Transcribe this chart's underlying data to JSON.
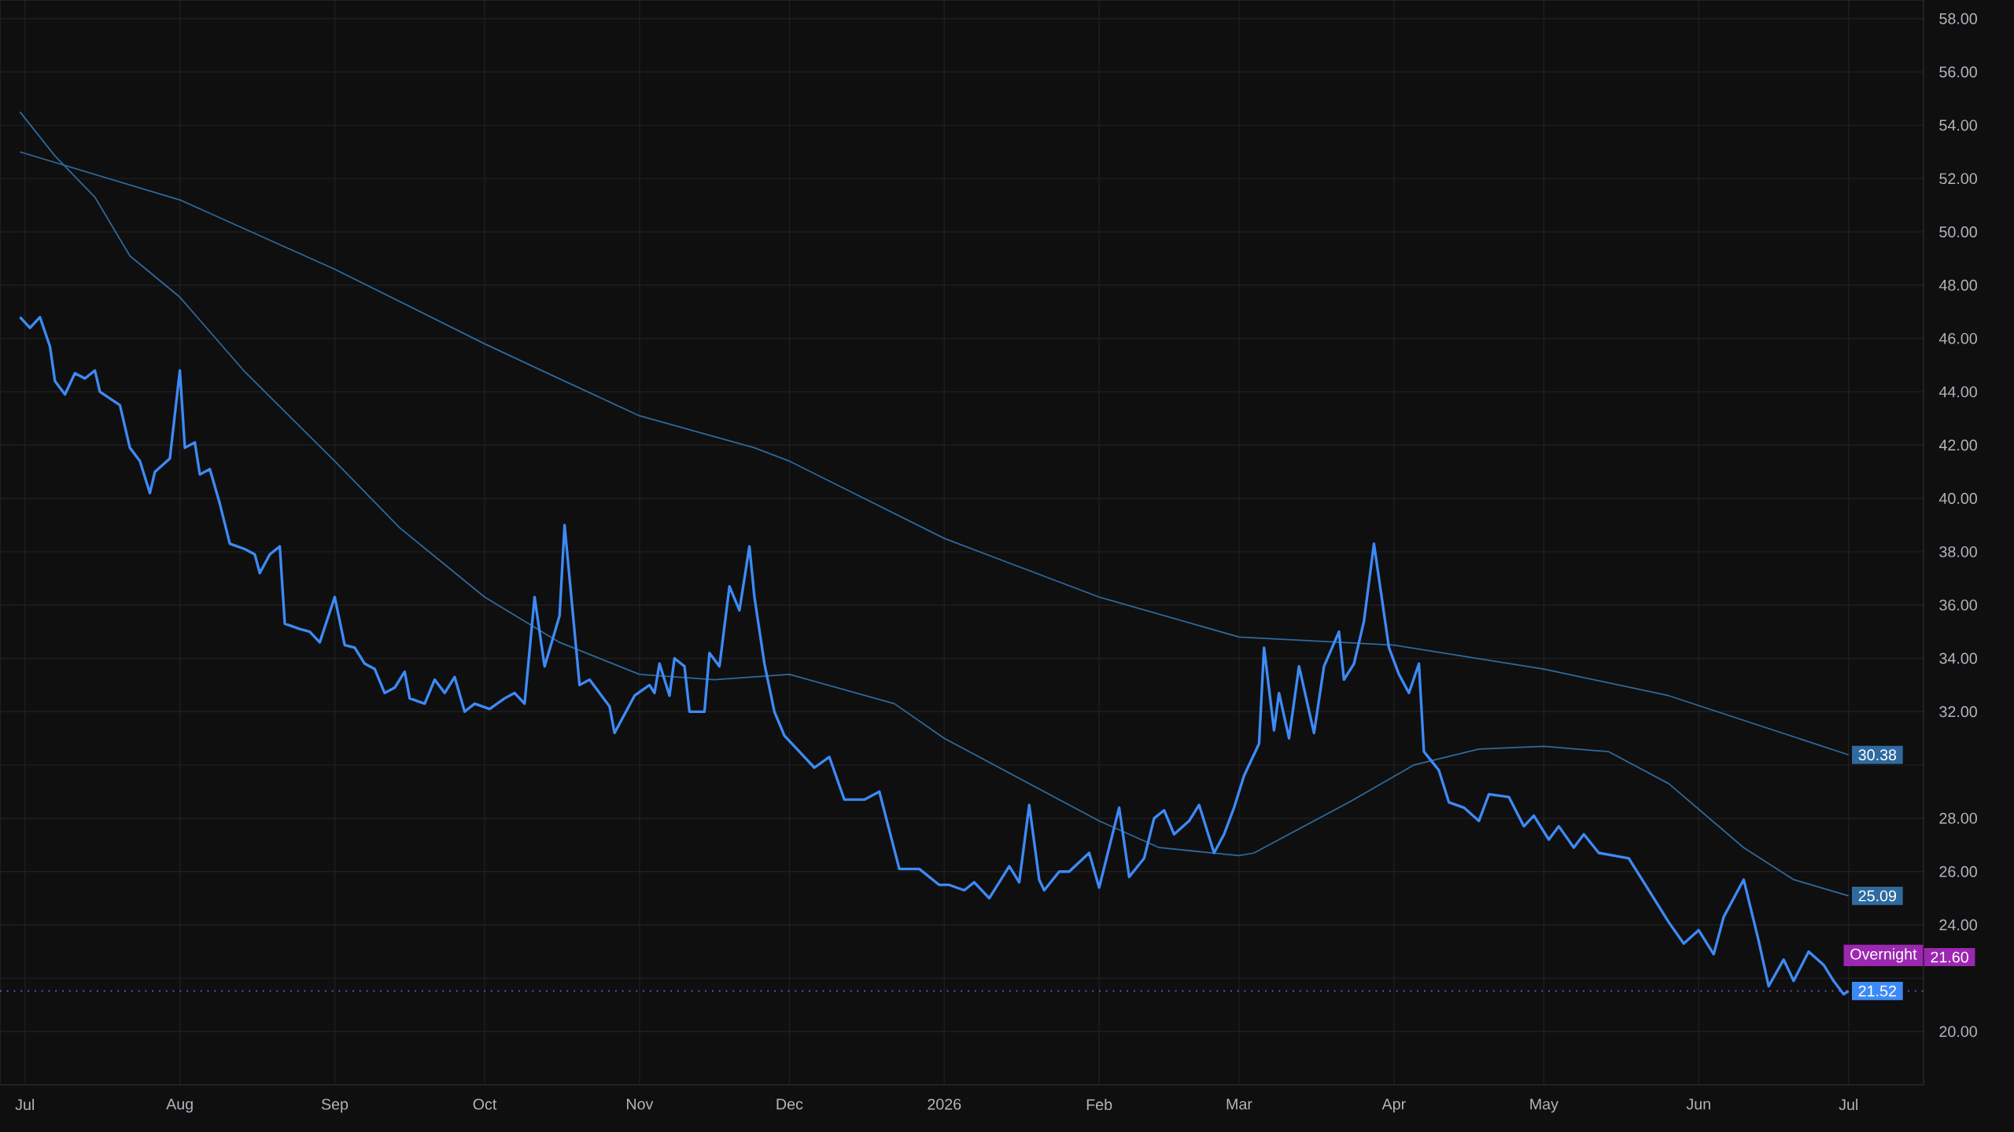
{
  "chart_data": {
    "type": "line",
    "xlim": [
      "2025-06-26",
      "2026-07-16"
    ],
    "ylim": [
      18.0,
      58.7
    ],
    "xticks": [
      {
        "value": "2025-07-01",
        "label": "Jul"
      },
      {
        "value": "2025-08-01",
        "label": "Aug"
      },
      {
        "value": "2025-09-01",
        "label": "Sep"
      },
      {
        "value": "2025-10-01",
        "label": "Oct"
      },
      {
        "value": "2025-11-01",
        "label": "Nov"
      },
      {
        "value": "2025-12-01",
        "label": "Dec"
      },
      {
        "value": "2026-01-01",
        "label": "2026"
      },
      {
        "value": "2026-02-01",
        "label": "Feb"
      },
      {
        "value": "2026-03-01",
        "label": "Mar"
      },
      {
        "value": "2026-04-01",
        "label": "Apr"
      },
      {
        "value": "2026-05-01",
        "label": "May"
      },
      {
        "value": "2026-06-01",
        "label": "Jun"
      },
      {
        "value": "2026-07-01",
        "label": "Jul"
      }
    ],
    "yticks": [
      {
        "value": 20,
        "label": "20.00"
      },
      {
        "value": 22,
        "label": null
      },
      {
        "value": 24,
        "label": "24.00"
      },
      {
        "value": 26,
        "label": "26.00"
      },
      {
        "value": 28,
        "label": "28.00"
      },
      {
        "value": 30,
        "label": null
      },
      {
        "value": 32,
        "label": "32.00"
      },
      {
        "value": 34,
        "label": "34.00"
      },
      {
        "value": 36,
        "label": "36.00"
      },
      {
        "value": 38,
        "label": "38.00"
      },
      {
        "value": 40,
        "label": "40.00"
      },
      {
        "value": 42,
        "label": "42.00"
      },
      {
        "value": 44,
        "label": "44.00"
      },
      {
        "value": 46,
        "label": "46.00"
      },
      {
        "value": 48,
        "label": "48.00"
      },
      {
        "value": 50,
        "label": "50.00"
      },
      {
        "value": 52,
        "label": "52.00"
      },
      {
        "value": 54,
        "label": "54.00"
      },
      {
        "value": 56,
        "label": "56.00"
      },
      {
        "value": 58,
        "label": "58.00"
      }
    ],
    "grid": true,
    "ref_lines": [
      {
        "axis": "y",
        "value": 21.52,
        "color": "#7b5bd6",
        "line_style": "dotted"
      }
    ],
    "annotations": [
      {
        "text": "Overnight",
        "x": "2026-07-16",
        "y": 21.6
      },
      {
        "text": "21.60",
        "x": "2026-07-16",
        "y": 21.6
      }
    ],
    "series": [
      {
        "color": "#2e6a9e",
        "x": [
          "2025-06-30",
          "2025-08-01",
          "2025-09-01",
          "2025-10-01",
          "2025-10-17",
          "2025-11-01",
          "2025-11-24",
          "2025-12-01",
          "2026-01-01",
          "2026-02-01",
          "2026-03-01",
          "2026-04-01",
          "2026-05-01",
          "2026-05-26",
          "2026-07-01"
        ],
        "values": [
          53.0,
          51.2,
          48.6,
          45.8,
          44.4,
          43.1,
          41.9,
          41.4,
          38.5,
          36.3,
          34.8,
          34.5,
          33.6,
          32.6,
          30.38
        ],
        "value_labels": [
          null,
          null,
          null,
          null,
          null,
          null,
          null,
          null,
          null,
          null,
          null,
          null,
          null,
          null,
          "30.38"
        ]
      },
      {
        "color": "#2e6a9e",
        "x": [
          "2025-06-30",
          "2025-07-07",
          "2025-07-15",
          "2025-07-22",
          "2025-08-01",
          "2025-08-14",
          "2025-09-01",
          "2025-09-14",
          "2025-10-01",
          "2025-10-16",
          "2025-11-01",
          "2025-11-16",
          "2025-12-01",
          "2025-12-22",
          "2026-01-01",
          "2026-02-01",
          "2026-02-13",
          "2026-03-01",
          "2026-03-04",
          "2026-03-23",
          "2026-04-05",
          "2026-04-18",
          "2026-05-01",
          "2026-05-14",
          "2026-05-26",
          "2026-06-10",
          "2026-06-20",
          "2026-07-01"
        ],
        "values": [
          54.5,
          52.85,
          51.3,
          49.1,
          47.55,
          44.75,
          41.4,
          38.9,
          36.3,
          34.6,
          33.4,
          33.2,
          33.4,
          32.3,
          31.0,
          27.9,
          26.9,
          26.6,
          26.7,
          28.6,
          30.0,
          30.6,
          30.7,
          30.5,
          29.3,
          26.9,
          25.7,
          25.09
        ],
        "value_labels": [
          null,
          null,
          null,
          null,
          null,
          null,
          null,
          null,
          null,
          null,
          null,
          null,
          null,
          null,
          null,
          null,
          null,
          null,
          null,
          null,
          null,
          null,
          null,
          null,
          null,
          null,
          null,
          "25.09"
        ]
      },
      {
        "color": "#3d8af7",
        "x": [
          "2025-06-30",
          "2025-07-02",
          "2025-07-04",
          "2025-07-06",
          "2025-07-07",
          "2025-07-09",
          "2025-07-11",
          "2025-07-13",
          "2025-07-15",
          "2025-07-16",
          "2025-07-20",
          "2025-07-22",
          "2025-07-24",
          "2025-07-26",
          "2025-07-27",
          "2025-07-30",
          "2025-08-01",
          "2025-08-02",
          "2025-08-04",
          "2025-08-05",
          "2025-08-07",
          "2025-08-09",
          "2025-08-11",
          "2025-08-14",
          "2025-08-16",
          "2025-08-17",
          "2025-08-19",
          "2025-08-21",
          "2025-08-22",
          "2025-08-25",
          "2025-08-27",
          "2025-08-29",
          "2025-09-01",
          "2025-09-03",
          "2025-09-05",
          "2025-09-07",
          "2025-09-09",
          "2025-09-11",
          "2025-09-13",
          "2025-09-15",
          "2025-09-16",
          "2025-09-19",
          "2025-09-21",
          "2025-09-23",
          "2025-09-25",
          "2025-09-27",
          "2025-09-29",
          "2025-10-02",
          "2025-10-05",
          "2025-10-07",
          "2025-10-09",
          "2025-10-11",
          "2025-10-13",
          "2025-10-16",
          "2025-10-17",
          "2025-10-20",
          "2025-10-22",
          "2025-10-26",
          "2025-10-27",
          "2025-10-31",
          "2025-11-03",
          "2025-11-04",
          "2025-11-05",
          "2025-11-07",
          "2025-11-08",
          "2025-11-10",
          "2025-11-11",
          "2025-11-14",
          "2025-11-15",
          "2025-11-17",
          "2025-11-19",
          "2025-11-21",
          "2025-11-23",
          "2025-11-24",
          "2025-11-26",
          "2025-11-28",
          "2025-11-30",
          "2025-12-03",
          "2025-12-06",
          "2025-12-09",
          "2025-12-12",
          "2025-12-16",
          "2025-12-19",
          "2025-12-23",
          "2025-12-27",
          "2025-12-31",
          "2026-01-02",
          "2026-01-05",
          "2026-01-07",
          "2026-01-10",
          "2026-01-14",
          "2026-01-16",
          "2026-01-18",
          "2026-01-20",
          "2026-01-21",
          "2026-01-24",
          "2026-01-26",
          "2026-01-30",
          "2026-02-01",
          "2026-02-03",
          "2026-02-05",
          "2026-02-07",
          "2026-02-10",
          "2026-02-12",
          "2026-02-14",
          "2026-02-16",
          "2026-02-19",
          "2026-02-21",
          "2026-02-24",
          "2026-02-26",
          "2026-02-28",
          "2026-03-02",
          "2026-03-05",
          "2026-03-06",
          "2026-03-08",
          "2026-03-09",
          "2026-03-11",
          "2026-03-13",
          "2026-03-16",
          "2026-03-18",
          "2026-03-21",
          "2026-03-22",
          "2026-03-24",
          "2026-03-26",
          "2026-03-28",
          "2026-03-31",
          "2026-04-02",
          "2026-04-04",
          "2026-04-06",
          "2026-04-07",
          "2026-04-10",
          "2026-04-12",
          "2026-04-15",
          "2026-04-18",
          "2026-04-20",
          "2026-04-24",
          "2026-04-27",
          "2026-04-29",
          "2026-05-02",
          "2026-05-04",
          "2026-05-07",
          "2026-05-09",
          "2026-05-12",
          "2026-05-15",
          "2026-05-18",
          "2026-05-22",
          "2026-05-26",
          "2026-05-29",
          "2026-06-01",
          "2026-06-04",
          "2026-06-06",
          "2026-06-10",
          "2026-06-13",
          "2026-06-15",
          "2026-06-18",
          "2026-06-20",
          "2026-06-23",
          "2026-06-26",
          "2026-06-28",
          "2026-06-30",
          "2026-07-01"
        ],
        "values": [
          46.8,
          46.4,
          46.8,
          45.7,
          44.4,
          43.9,
          44.7,
          44.5,
          44.8,
          44.0,
          43.5,
          41.9,
          41.4,
          40.2,
          41.0,
          41.5,
          44.8,
          41.9,
          42.1,
          40.9,
          41.1,
          39.8,
          38.3,
          38.1,
          37.9,
          37.2,
          37.9,
          38.2,
          35.3,
          35.1,
          35.0,
          34.6,
          36.3,
          34.5,
          34.4,
          33.8,
          33.6,
          32.7,
          32.9,
          33.5,
          32.5,
          32.3,
          33.2,
          32.7,
          33.3,
          32.0,
          32.3,
          32.1,
          32.5,
          32.7,
          32.3,
          36.3,
          33.7,
          35.6,
          39.0,
          33.0,
          33.2,
          32.2,
          31.2,
          32.6,
          33.0,
          32.7,
          33.8,
          32.6,
          34.0,
          33.7,
          32.0,
          32.0,
          34.2,
          33.7,
          36.7,
          35.8,
          38.2,
          36.3,
          33.8,
          32.0,
          31.1,
          30.5,
          29.9,
          30.3,
          28.7,
          28.7,
          29.0,
          26.1,
          26.1,
          25.5,
          25.5,
          25.3,
          25.6,
          25.0,
          26.2,
          25.6,
          28.5,
          25.7,
          25.3,
          26.0,
          26.0,
          26.7,
          25.4,
          26.9,
          28.4,
          25.8,
          26.5,
          28.0,
          28.3,
          27.4,
          27.9,
          28.5,
          26.7,
          27.4,
          28.4,
          29.6,
          30.8,
          34.4,
          31.3,
          32.7,
          31.0,
          33.7,
          31.2,
          33.7,
          35.0,
          33.2,
          33.8,
          35.4,
          38.3,
          34.4,
          33.4,
          32.7,
          33.8,
          30.5,
          29.8,
          28.6,
          28.4,
          27.9,
          28.9,
          28.8,
          27.7,
          28.1,
          27.2,
          27.7,
          26.9,
          27.4,
          26.7,
          26.6,
          26.5,
          25.3,
          24.1,
          23.3,
          23.8,
          22.9,
          24.3,
          25.7,
          23.4,
          21.7,
          22.7,
          21.9,
          23.0,
          22.5,
          21.9,
          21.4,
          21.52
        ],
        "value_labels": [
          null,
          null,
          null,
          null,
          null,
          null,
          null,
          null,
          null,
          null,
          null,
          null,
          null,
          null,
          null,
          null,
          null,
          null,
          null,
          null,
          null,
          null,
          null,
          null,
          null,
          null,
          null,
          null,
          null,
          null,
          null,
          null,
          null,
          null,
          null,
          null,
          null,
          null,
          null,
          null,
          null,
          null,
          null,
          null,
          null,
          null,
          null,
          null,
          null,
          null,
          null,
          null,
          null,
          null,
          null,
          null,
          null,
          null,
          null,
          null,
          null,
          null,
          null,
          null,
          null,
          null,
          null,
          null,
          null,
          null,
          null,
          null,
          null,
          null,
          null,
          null,
          null,
          null,
          null,
          null,
          null,
          null,
          null,
          null,
          null,
          null,
          null,
          null,
          null,
          null,
          null,
          null,
          null,
          null,
          null,
          null,
          null,
          null,
          null,
          null,
          null,
          null,
          null,
          null,
          null,
          null,
          null,
          null,
          null,
          null,
          null,
          null,
          null,
          null,
          null,
          null,
          null,
          null,
          null,
          null,
          null,
          null,
          null,
          null,
          null,
          null,
          null,
          null,
          null,
          null,
          null,
          null,
          null,
          null,
          null,
          null,
          null,
          null,
          null,
          null,
          null,
          null,
          null,
          null,
          null,
          null,
          null,
          null,
          null,
          null,
          null,
          null,
          null,
          null,
          null,
          null,
          null,
          null,
          null,
          null,
          "21.52"
        ]
      }
    ]
  }
}
